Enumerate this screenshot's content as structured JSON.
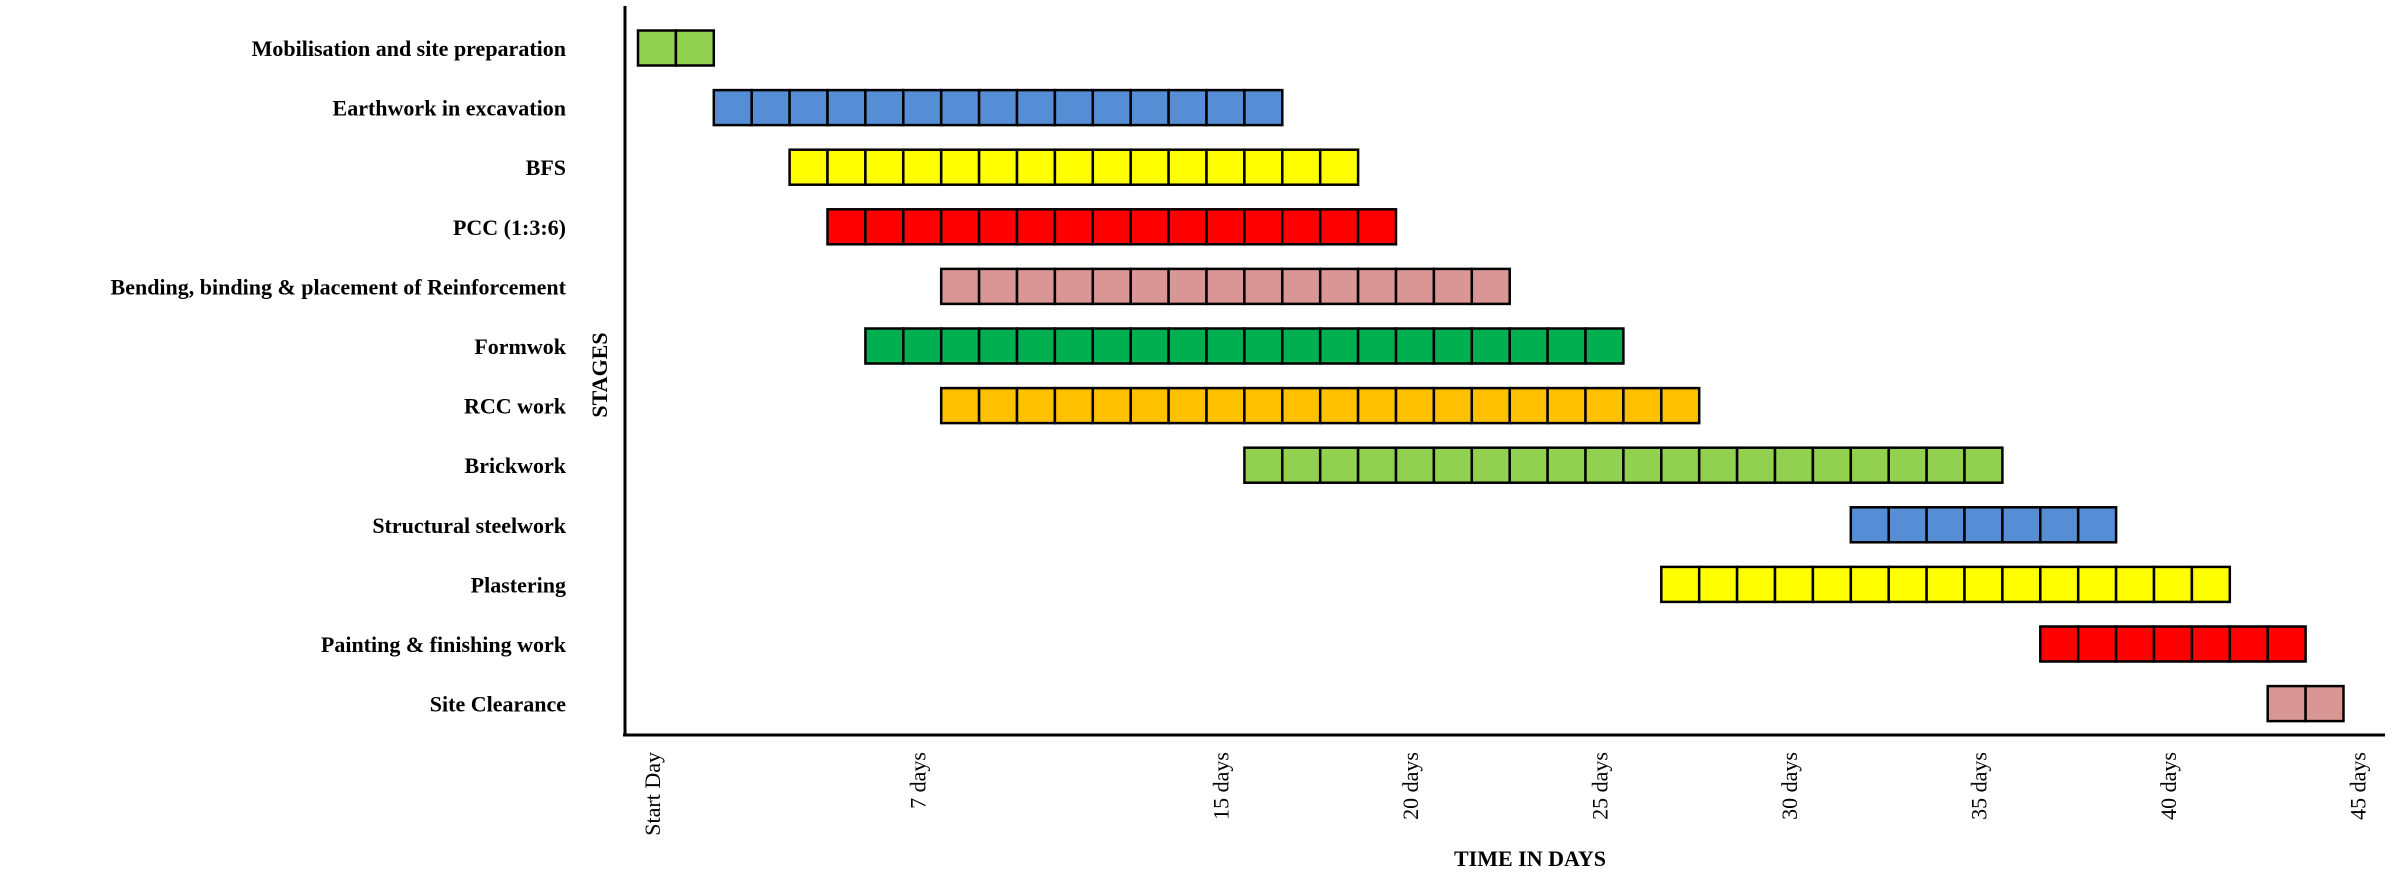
{
  "chart_data": {
    "type": "gantt",
    "ylabel": "STAGES",
    "xlabel": "TIME IN DAYS",
    "xlim": [
      0,
      45
    ],
    "x_ticks": [
      {
        "value": 0,
        "label": "Start Day"
      },
      {
        "value": 7,
        "label": "7 days"
      },
      {
        "value": 15,
        "label": "15 days"
      },
      {
        "value": 20,
        "label": "20 days"
      },
      {
        "value": 25,
        "label": "25 days"
      },
      {
        "value": 30,
        "label": "30 days"
      },
      {
        "value": 35,
        "label": "35 days"
      },
      {
        "value": 40,
        "label": "40 days"
      },
      {
        "value": 45,
        "label": "45 days"
      }
    ],
    "tasks": [
      {
        "name": "Mobilisation and site preparation",
        "start": 0,
        "end": 2,
        "color": "#92d050"
      },
      {
        "name": "Earthwork in excavation",
        "start": 2,
        "end": 17,
        "color": "#558ed5"
      },
      {
        "name": "BFS",
        "start": 4,
        "end": 19,
        "color": "#ffff00"
      },
      {
        "name": "PCC (1:3:6)",
        "start": 5,
        "end": 20,
        "color": "#ff0000"
      },
      {
        "name": "Bending, binding & placement of Reinforcement",
        "start": 8,
        "end": 23,
        "color": "#d99694"
      },
      {
        "name": "Formwok",
        "start": 6,
        "end": 26,
        "color": "#00b050"
      },
      {
        "name": "RCC work",
        "start": 8,
        "end": 28,
        "color": "#ffc000"
      },
      {
        "name": "Brickwork",
        "start": 16,
        "end": 36,
        "color": "#92d050"
      },
      {
        "name": "Structural steelwork",
        "start": 32,
        "end": 39,
        "color": "#558ed5"
      },
      {
        "name": "Plastering",
        "start": 27,
        "end": 42,
        "color": "#ffff00"
      },
      {
        "name": "Painting & finishing work",
        "start": 37,
        "end": 44,
        "color": "#ff0000"
      },
      {
        "name": "Site Clearance",
        "start": 43,
        "end": 45,
        "color": "#d99694"
      }
    ]
  }
}
